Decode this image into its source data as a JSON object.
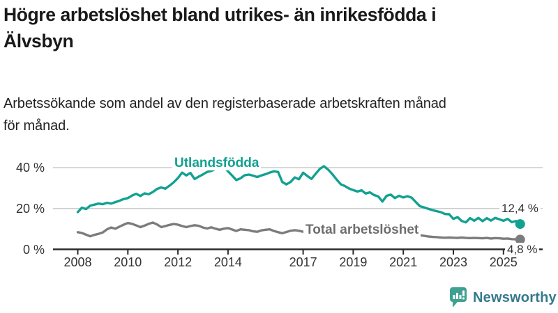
{
  "header": {
    "title_lines": [
      "Högre arbetslöshet bland utrikes- än inrikesfödda i",
      "Älvsbyn"
    ],
    "subtitle_lines": [
      "Arbetssökande som andel av den registerbaserade arbetskraften månad",
      "för månad."
    ]
  },
  "chart_data": {
    "type": "line",
    "x_range": [
      2008,
      2025.67
    ],
    "ylim": [
      0,
      44
    ],
    "samples_per_year": 6,
    "x_start": 2008,
    "x_tick_labels": [
      "2008",
      "2010",
      "2012",
      "2014",
      "2017",
      "2019",
      "2021",
      "2023",
      "2025"
    ],
    "y_ticks": [
      {
        "value": 0,
        "label": "0 %"
      },
      {
        "value": 20,
        "label": "20 %"
      },
      {
        "value": 40,
        "label": "40 %"
      }
    ],
    "grid_color": "#cccccc",
    "axis_color": "#2b2b2b",
    "tick_text_color": "#333333",
    "series": [
      {
        "key": "utlandsfodda",
        "name": "Utlandsfödda",
        "color": "#12a191",
        "label_color": "#12a191",
        "end_label": "12,4 %",
        "end_value": 12.4,
        "values": [
          18.2,
          20.4,
          19.7,
          21.4,
          21.9,
          22.4,
          22.1,
          22.8,
          22.4,
          23.1,
          23.8,
          24.6,
          25.1,
          26.3,
          27.2,
          26.1,
          27.4,
          27.0,
          28.1,
          29.6,
          30.3,
          29.7,
          31.2,
          32.8,
          34.9,
          37.6,
          36.2,
          37.4,
          34.4,
          35.6,
          36.7,
          37.9,
          38.4,
          39.3,
          40.1,
          40.4,
          38.2,
          36.1,
          33.9,
          34.8,
          36.3,
          36.6,
          36.1,
          35.4,
          36.2,
          36.8,
          37.6,
          38.2,
          37.9,
          33.0,
          31.8,
          33.0,
          35.2,
          34.3,
          37.5,
          35.9,
          34.5,
          37.0,
          39.4,
          40.7,
          39.0,
          36.8,
          34.2,
          31.9,
          31.0,
          29.8,
          29.0,
          28.3,
          28.9,
          27.3,
          27.9,
          26.6,
          25.9,
          23.4,
          26.2,
          26.8,
          25.1,
          26.2,
          25.4,
          26.0,
          25.3,
          23.2,
          21.1,
          20.5,
          19.8,
          19.2,
          18.7,
          18.2,
          17.3,
          17.2,
          14.9,
          15.8,
          13.9,
          13.2,
          15.3,
          14.0,
          15.4,
          13.8,
          15.3,
          14.1,
          15.4,
          14.7,
          14.0,
          14.9,
          13.3,
          13.9,
          12.4
        ]
      },
      {
        "key": "total",
        "name": "Total arbetslöshet",
        "color": "#7c7c7c",
        "label_color": "#6e6e6e",
        "end_label": "4,8 %",
        "end_value": 4.8,
        "values": [
          8.4,
          8.0,
          7.2,
          6.4,
          7.1,
          7.6,
          8.3,
          9.8,
          10.7,
          10.1,
          11.1,
          12.1,
          12.9,
          12.5,
          11.7,
          10.9,
          11.6,
          12.5,
          13.1,
          12.2,
          10.9,
          11.4,
          12.0,
          12.4,
          12.1,
          11.4,
          10.9,
          11.4,
          11.8,
          11.5,
          10.7,
          10.2,
          10.8,
          10.1,
          9.6,
          10.1,
          10.4,
          9.7,
          9.0,
          9.8,
          9.6,
          9.4,
          8.8,
          8.6,
          9.3,
          9.6,
          9.8,
          9.0,
          8.4,
          7.9,
          8.5,
          9.1,
          9.4,
          9.1,
          8.6,
          8.2,
          7.8,
          7.5,
          7.2,
          7.0,
          6.9,
          6.7,
          6.6,
          6.8,
          7.0,
          7.2,
          7.4,
          7.3,
          7.6,
          7.8,
          8.0,
          8.2,
          8.6,
          9.3,
          9.8,
          9.5,
          9.1,
          8.8,
          8.4,
          8.0,
          7.6,
          7.2,
          6.9,
          6.6,
          6.3,
          6.1,
          6.0,
          5.8,
          5.7,
          5.8,
          5.7,
          5.6,
          5.8,
          5.6,
          5.5,
          5.6,
          5.5,
          5.4,
          5.6,
          5.3,
          5.5,
          5.4,
          5.2,
          5.3,
          5.0,
          4.9,
          4.8
        ]
      }
    ]
  },
  "footer": {
    "brand": "Newsworthy",
    "brand_color": "#35798c",
    "logo_color": "#3fa191",
    "logo_icon": "bar-chart-speech-bubble"
  }
}
